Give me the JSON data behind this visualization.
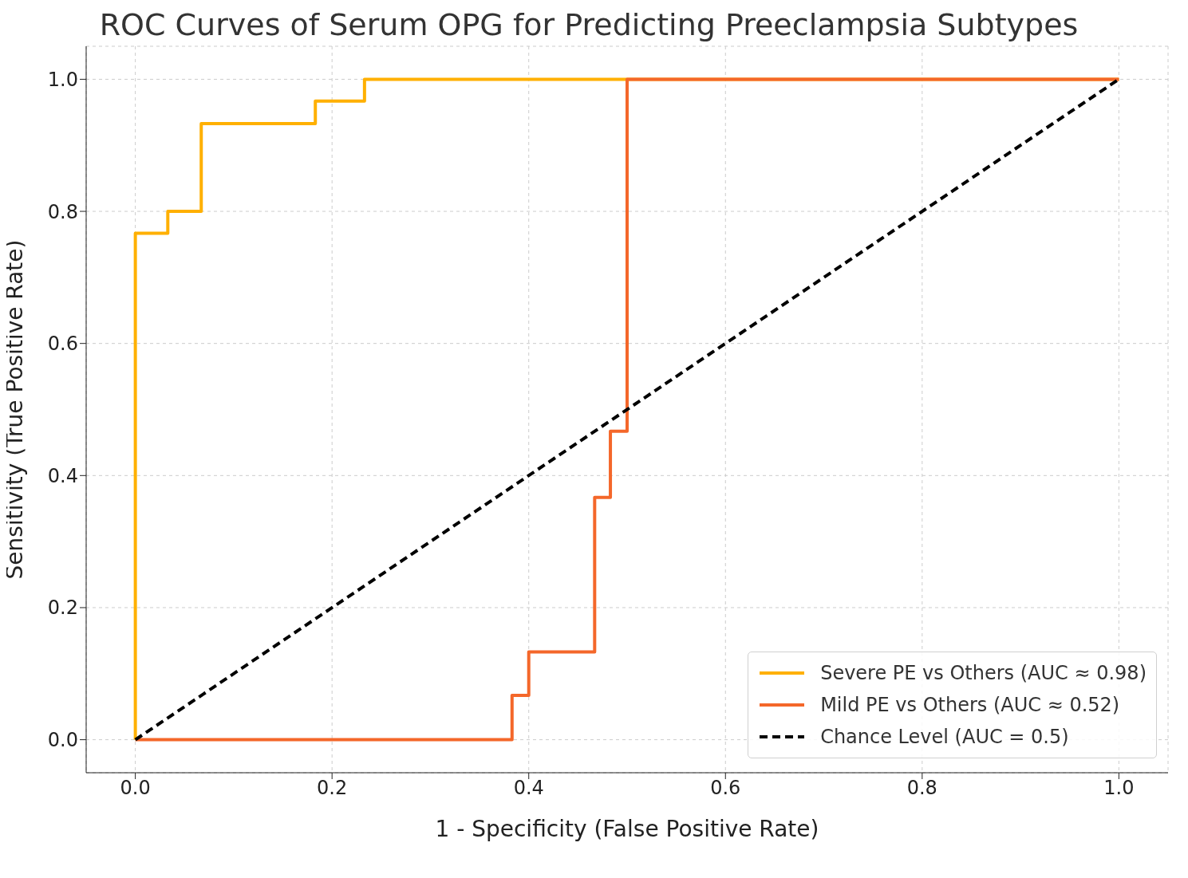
{
  "chart_data": {
    "type": "line",
    "title": "ROC Curves of Serum OPG for Predicting Preeclampsia Subtypes",
    "xlabel": "1 - Specificity (False Positive Rate)",
    "ylabel": "Sensitivity (True Positive Rate)",
    "xlim": [
      -0.05,
      1.05
    ],
    "ylim": [
      -0.05,
      1.05
    ],
    "xticks": [
      {
        "value": 0,
        "label": "0.0"
      },
      {
        "value": 0.2,
        "label": "0.2"
      },
      {
        "value": 0.4,
        "label": "0.4"
      },
      {
        "value": 0.6,
        "label": "0.6"
      },
      {
        "value": 0.8,
        "label": "0.8"
      },
      {
        "value": 1,
        "label": "1.0"
      }
    ],
    "yticks": [
      {
        "value": 0,
        "label": "0.0"
      },
      {
        "value": 0.2,
        "label": "0.2"
      },
      {
        "value": 0.4,
        "label": "0.4"
      },
      {
        "value": 0.6,
        "label": "0.6"
      },
      {
        "value": 0.8,
        "label": "0.8"
      },
      {
        "value": 1,
        "label": "1.0"
      }
    ],
    "grid": true,
    "legend": "bottom right",
    "marker": "none",
    "series": [
      {
        "name": "Severe PE vs Others (AUC ≈ 0.98)",
        "color": "#ffb000",
        "line_style": "solid",
        "x": [
          0,
          0,
          0.033,
          0.033,
          0.067,
          0.067,
          0.183,
          0.183,
          0.233,
          0.233,
          1
        ],
        "values": [
          0,
          0.767,
          0.767,
          0.8,
          0.8,
          0.933,
          0.933,
          0.967,
          0.967,
          1,
          1
        ]
      },
      {
        "name": "Mild PE vs Others (AUC ≈ 0.52)",
        "color": "#f4672a",
        "line_style": "solid",
        "x": [
          0,
          0.383,
          0.383,
          0.4,
          0.4,
          0.467,
          0.467,
          0.483,
          0.483,
          0.5,
          0.5,
          1
        ],
        "values": [
          0,
          0,
          0.067,
          0.067,
          0.133,
          0.133,
          0.367,
          0.367,
          0.467,
          0.467,
          1,
          1
        ]
      },
      {
        "name": "Chance Level (AUC = 0.5)",
        "color": "#000000",
        "line_style": "dashed",
        "x": [
          0,
          1
        ],
        "values": [
          0,
          1
        ]
      }
    ]
  }
}
